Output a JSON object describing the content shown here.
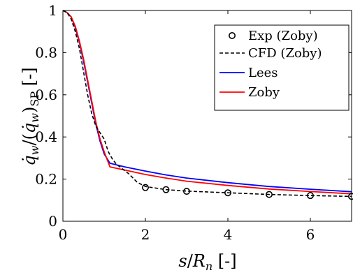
{
  "chart_data": {
    "type": "line",
    "title": "",
    "xlabel": "s/R_n [-]",
    "ylabel": "q̇_w/(q̇_w)_SP [-]",
    "xlim": [
      0,
      7
    ],
    "ylim": [
      0,
      1
    ],
    "xticks": [
      0,
      2,
      4,
      6
    ],
    "yticks": [
      0,
      0.2,
      0.4,
      0.6,
      0.8,
      1
    ],
    "xtick_labels": [
      "0",
      "2",
      "4",
      "6"
    ],
    "ytick_labels": [
      "0",
      "0.2",
      "0.4",
      "0.6",
      "0.8",
      "1"
    ],
    "grid": false,
    "legend_position": "top-right",
    "series": [
      {
        "name": "Exp (Zoby)",
        "style": "markers",
        "marker": "circle",
        "color": "#000000",
        "x": [
          2.0,
          2.5,
          3.0,
          4.0,
          5.0,
          6.0,
          7.0
        ],
        "y": [
          0.16,
          0.15,
          0.142,
          0.135,
          0.127,
          0.122,
          0.118
        ]
      },
      {
        "name": "CFD (Zoby)",
        "style": "dashed",
        "color": "#000000",
        "x": [
          0,
          0.1,
          0.2,
          0.3,
          0.4,
          0.5,
          0.6,
          0.7,
          0.8,
          0.9,
          1.0,
          1.1,
          1.2,
          1.3,
          1.4,
          1.5,
          1.6,
          1.7,
          1.8,
          2.0,
          2.5,
          3.0,
          4.0,
          5.0,
          6.0,
          7.0
        ],
        "y": [
          1.0,
          0.99,
          0.96,
          0.9,
          0.82,
          0.71,
          0.6,
          0.51,
          0.45,
          0.42,
          0.39,
          0.33,
          0.295,
          0.27,
          0.255,
          0.24,
          0.225,
          0.205,
          0.185,
          0.165,
          0.15,
          0.143,
          0.135,
          0.127,
          0.122,
          0.118
        ]
      },
      {
        "name": "Lees",
        "style": "solid",
        "color": "#0000ff",
        "x": [
          0,
          0.1,
          0.2,
          0.3,
          0.4,
          0.5,
          0.6,
          0.7,
          0.8,
          0.9,
          1.0,
          1.14,
          1.5,
          2.0,
          2.5,
          3.0,
          4.0,
          5.0,
          6.0,
          7.0
        ],
        "y": [
          1.0,
          0.99,
          0.97,
          0.92,
          0.85,
          0.76,
          0.66,
          0.56,
          0.46,
          0.38,
          0.32,
          0.275,
          0.258,
          0.238,
          0.22,
          0.205,
          0.183,
          0.165,
          0.152,
          0.14
        ]
      },
      {
        "name": "Zoby",
        "style": "solid",
        "color": "#ff0000",
        "x": [
          0,
          0.1,
          0.2,
          0.3,
          0.4,
          0.5,
          0.6,
          0.7,
          0.8,
          0.9,
          1.0,
          1.14,
          1.5,
          2.0,
          2.5,
          3.0,
          4.0,
          5.0,
          6.0,
          7.0
        ],
        "y": [
          1.0,
          0.99,
          0.97,
          0.925,
          0.855,
          0.77,
          0.67,
          0.57,
          0.47,
          0.39,
          0.33,
          0.258,
          0.243,
          0.222,
          0.205,
          0.19,
          0.17,
          0.153,
          0.141,
          0.13
        ]
      }
    ]
  }
}
